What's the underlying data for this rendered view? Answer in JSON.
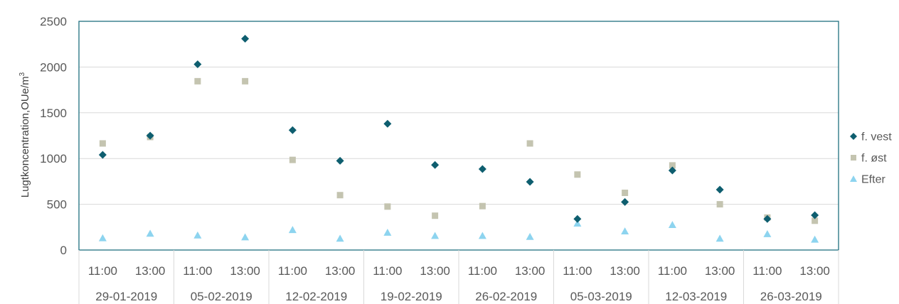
{
  "chart_data": {
    "type": "scatter",
    "ylabel": "Lugtkoncentration,OUe/m",
    "ylabel_superscript": "3",
    "ylim": [
      0,
      2500
    ],
    "yticks": [
      0,
      500,
      1000,
      1500,
      2000,
      2500
    ],
    "ytick_labels": [
      "0",
      "500",
      "1000",
      "1500",
      "2000",
      "2500"
    ],
    "gridlines": "horizontal",
    "legend_position": "right",
    "dates": [
      "29-01-2019",
      "05-02-2019",
      "12-02-2019",
      "19-02-2019",
      "26-02-2019",
      "05-03-2019",
      "12-03-2019",
      "26-03-2019"
    ],
    "times": [
      "11:00",
      "13:00"
    ],
    "categories": [
      "29-01-2019 11:00",
      "29-01-2019 13:00",
      "05-02-2019 11:00",
      "05-02-2019 13:00",
      "12-02-2019 11:00",
      "12-02-2019 13:00",
      "19-02-2019 11:00",
      "19-02-2019 13:00",
      "26-02-2019 11:00",
      "26-02-2019 13:00",
      "05-03-2019 11:00",
      "05-03-2019 13:00",
      "12-03-2019 11:00",
      "12-03-2019 13:00",
      "26-03-2019 11:00",
      "26-03-2019 13:00"
    ],
    "series": [
      {
        "name": "f. vest",
        "marker": "diamond",
        "color": "#0e5e6f",
        "values": [
          1040,
          1250,
          2030,
          2310,
          1310,
          975,
          1380,
          930,
          885,
          745,
          340,
          525,
          870,
          660,
          340,
          380
        ]
      },
      {
        "name": "f. øst",
        "marker": "square",
        "color": "#c4c4b0",
        "values": [
          1165,
          1235,
          1845,
          1845,
          985,
          600,
          475,
          375,
          480,
          1165,
          825,
          625,
          925,
          500,
          355,
          320
        ]
      },
      {
        "name": "Efter",
        "marker": "triangle",
        "color": "#8dd4ef",
        "values": [
          130,
          180,
          160,
          140,
          220,
          125,
          190,
          155,
          155,
          145,
          290,
          205,
          275,
          125,
          175,
          115
        ]
      }
    ]
  }
}
